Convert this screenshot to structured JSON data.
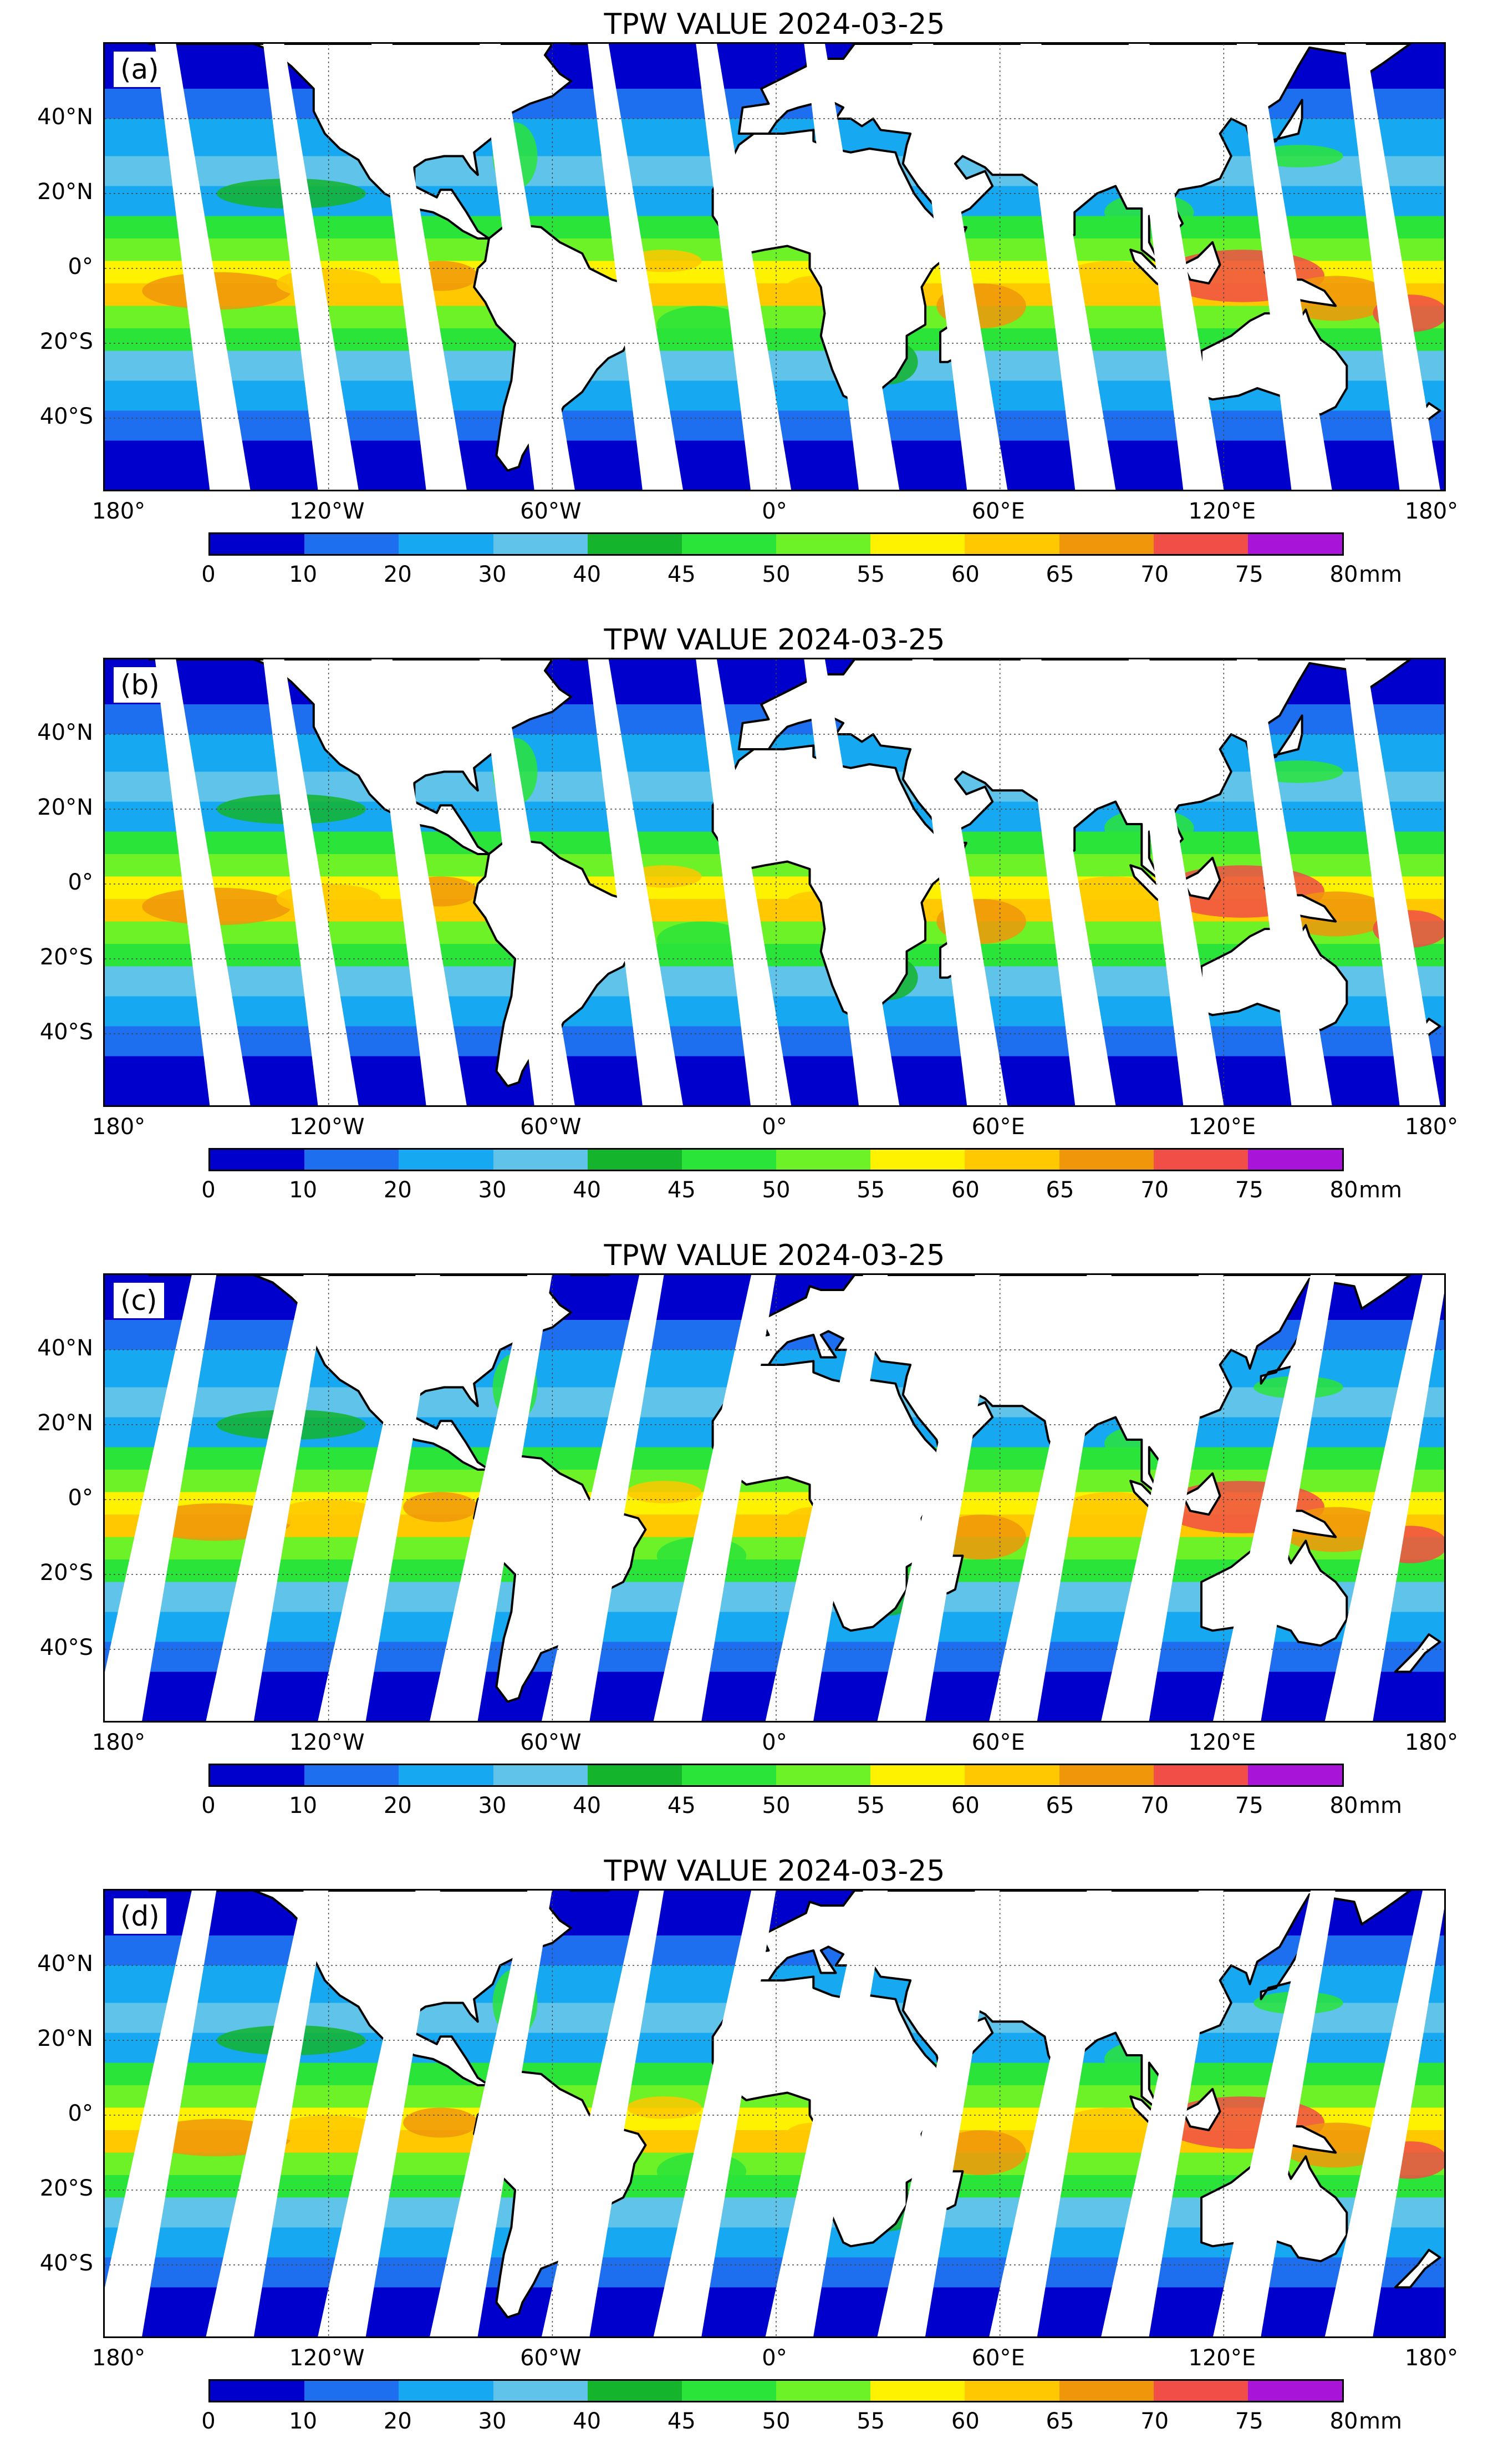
{
  "figure": {
    "panels": [
      {
        "id": "a",
        "label": "(a)",
        "title": "TPW VALUE  2024-03-25",
        "swath": "pattern-1"
      },
      {
        "id": "b",
        "label": "(b)",
        "title": "TPW VALUE  2024-03-25",
        "swath": "pattern-1"
      },
      {
        "id": "c",
        "label": "(c)",
        "title": "TPW VALUE  2024-03-25",
        "swath": "pattern-2"
      },
      {
        "id": "d",
        "label": "(d)",
        "title": "TPW VALUE  2024-03-25",
        "swath": "pattern-2"
      }
    ],
    "lat_ticks": [
      "40°N",
      "20°N",
      "0°",
      "20°S",
      "40°S"
    ],
    "lon_ticks": [
      "180°",
      "120°W",
      "60°W",
      "0°",
      "60°E",
      "120°E",
      "180°"
    ],
    "colorbar": {
      "unit": "mm",
      "levels": [
        "0",
        "10",
        "20",
        "30",
        "40",
        "45",
        "50",
        "55",
        "60",
        "65",
        "70",
        "75",
        "80"
      ],
      "colors": [
        "#0000cd",
        "#1e6ff0",
        "#17a8f2",
        "#5fc3ea",
        "#14b42d",
        "#2be43a",
        "#6cf227",
        "#fff200",
        "#ffc800",
        "#f0960a",
        "#f04e46",
        "#a814d8"
      ]
    }
  }
}
